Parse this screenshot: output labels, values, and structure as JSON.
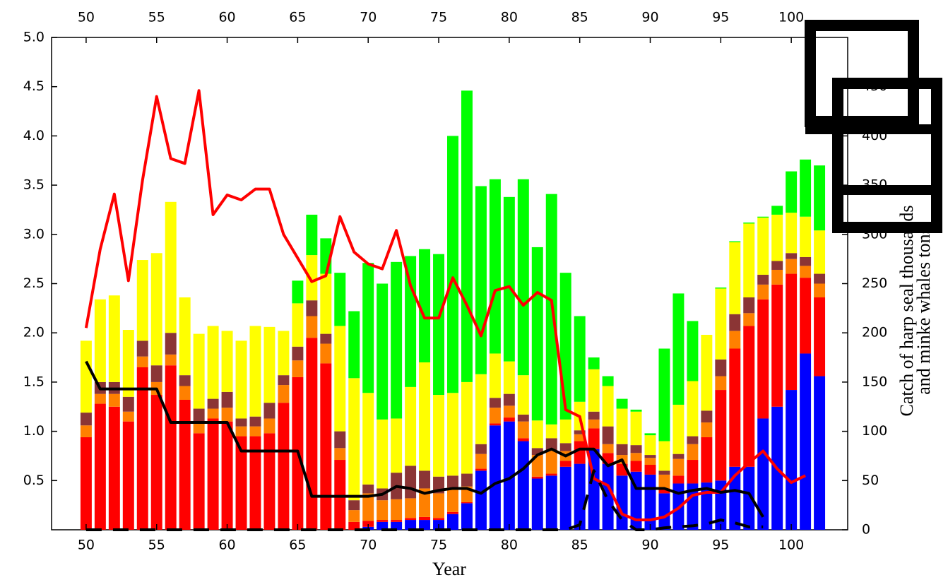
{
  "chart_data": {
    "type": "bar",
    "stacked": true,
    "xlabel": "Year",
    "y2label": [
      "Catch of harp seal thousands",
      "and minke whales tons"
    ],
    "x": [
      50,
      51,
      52,
      53,
      54,
      55,
      56,
      57,
      58,
      59,
      60,
      61,
      62,
      63,
      64,
      65,
      66,
      67,
      68,
      69,
      70,
      71,
      72,
      73,
      74,
      75,
      76,
      77,
      78,
      79,
      80,
      81,
      82,
      83,
      84,
      85,
      86,
      87,
      88,
      89,
      90,
      91,
      92,
      93,
      94,
      95,
      96,
      97,
      98,
      99,
      100,
      101,
      102
    ],
    "xlim": [
      47.55,
      104.0
    ],
    "xticks": [
      50,
      55,
      60,
      65,
      70,
      75,
      80,
      85,
      90,
      95,
      100
    ],
    "ylim": [
      0,
      5
    ],
    "yticks": [
      0.5,
      {
        "value": 1,
        "label": "1.0"
      },
      1.5,
      {
        "value": 2,
        "label": "2.0"
      },
      2.5,
      {
        "value": 3,
        "label": "3.0"
      },
      3.5,
      {
        "value": 4,
        "label": "4.0"
      },
      4.5,
      {
        "value": 5,
        "label": "5.0"
      }
    ],
    "y2lim": [
      0,
      500
    ],
    "y2ticks": [
      0,
      50,
      100,
      150,
      200,
      250,
      300,
      350,
      400,
      450
    ],
    "series": [
      {
        "color": "#0000ff",
        "values": [
          0,
          0,
          0,
          0,
          0,
          0,
          0,
          0,
          0,
          0,
          0,
          0,
          0,
          0,
          0,
          0,
          0,
          0,
          0,
          0,
          0.03,
          0.08,
          0.08,
          0.1,
          0.1,
          0.1,
          0.16,
          0.27,
          0.6,
          1.06,
          1.1,
          0.9,
          0.52,
          0.55,
          0.64,
          0.67,
          0.82,
          0.67,
          0.55,
          0.59,
          0.56,
          0.37,
          0.47,
          0.47,
          0.48,
          0.5,
          0.64,
          0.64,
          1.13,
          1.25,
          1.42,
          1.79,
          1.56
        ]
      },
      {
        "color": "#ff0000",
        "values": [
          0.94,
          1.28,
          1.25,
          1.1,
          1.65,
          1.37,
          1.67,
          1.32,
          0.98,
          1.13,
          1.1,
          0.95,
          0.95,
          0.98,
          1.29,
          1.55,
          1.95,
          1.69,
          0.71,
          0.08,
          0.06,
          0.02,
          0.02,
          0.02,
          0.03,
          0.02,
          0.02,
          0.01,
          0.02,
          0.02,
          0.04,
          0.03,
          0.02,
          0.02,
          0.06,
          0.23,
          0.21,
          0.11,
          0.12,
          0.11,
          0.1,
          0.05,
          0.08,
          0.24,
          0.46,
          0.92,
          1.2,
          1.43,
          1.21,
          1.24,
          1.18,
          0.77,
          0.8
        ]
      },
      {
        "color": "#ff8000",
        "values": [
          0.12,
          0.1,
          0.13,
          0.1,
          0.11,
          0.13,
          0.11,
          0.14,
          0.1,
          0.1,
          0.14,
          0.1,
          0.1,
          0.15,
          0.18,
          0.17,
          0.22,
          0.2,
          0.12,
          0.12,
          0.28,
          0.2,
          0.21,
          0.2,
          0.29,
          0.25,
          0.25,
          0.16,
          0.15,
          0.16,
          0.12,
          0.17,
          0.22,
          0.24,
          0.1,
          0.07,
          0.09,
          0.09,
          0.09,
          0.08,
          0.07,
          0.14,
          0.17,
          0.16,
          0.15,
          0.14,
          0.18,
          0.13,
          0.15,
          0.15,
          0.15,
          0.12,
          0.14
        ]
      },
      {
        "color": "#8b3535",
        "values": [
          0.13,
          0.12,
          0.12,
          0.15,
          0.16,
          0.17,
          0.22,
          0.11,
          0.15,
          0.1,
          0.16,
          0.08,
          0.1,
          0.16,
          0.1,
          0.14,
          0.16,
          0.1,
          0.17,
          0.1,
          0.09,
          0.12,
          0.27,
          0.33,
          0.18,
          0.17,
          0.12,
          0.13,
          0.1,
          0.1,
          0.12,
          0.07,
          0.07,
          0.12,
          0.08,
          0.04,
          0.08,
          0.18,
          0.11,
          0.08,
          0.03,
          0.04,
          0.05,
          0.08,
          0.12,
          0.17,
          0.17,
          0.16,
          0.1,
          0.09,
          0.06,
          0.09,
          0.1
        ]
      },
      {
        "color": "#ffff00",
        "values": [
          0.73,
          0.84,
          0.88,
          0.68,
          0.82,
          1.14,
          1.33,
          0.79,
          0.76,
          0.74,
          0.62,
          0.79,
          0.92,
          0.77,
          0.45,
          0.44,
          0.46,
          0.61,
          1.07,
          1.24,
          0.93,
          0.7,
          0.55,
          0.8,
          1.1,
          0.83,
          0.84,
          0.93,
          0.71,
          0.45,
          0.33,
          0.4,
          0.28,
          0.14,
          0.24,
          0.29,
          0.43,
          0.41,
          0.36,
          0.34,
          0.2,
          0.3,
          0.5,
          0.56,
          0.77,
          0.72,
          0.73,
          0.75,
          0.58,
          0.47,
          0.41,
          0.41,
          0.44
        ]
      },
      {
        "color": "#00ff00",
        "values": [
          0,
          0,
          0,
          0,
          0,
          0,
          0,
          0,
          0,
          0,
          0,
          0,
          0,
          0,
          0,
          0.23,
          0.41,
          0.36,
          0.54,
          0.68,
          1.32,
          1.38,
          1.59,
          1.33,
          1.15,
          1.43,
          2.61,
          2.96,
          1.91,
          1.77,
          1.67,
          1.99,
          1.76,
          2.34,
          1.49,
          0.87,
          0.12,
          0.1,
          0.1,
          0.02,
          0.02,
          0.94,
          1.13,
          0.61,
          0,
          0.01,
          0.01,
          0.01,
          0.01,
          0.09,
          0.42,
          0.58,
          0.66
        ]
      },
      {
        "type": "line",
        "axis": "y2",
        "color": "#ff0000",
        "values": [
          205,
          285,
          341,
          253,
          355,
          440,
          377,
          372,
          446,
          320,
          340,
          335,
          346,
          346,
          300,
          276,
          252,
          258,
          318,
          282,
          270,
          265,
          304,
          248,
          215,
          215,
          256,
          228,
          197,
          243,
          247,
          228,
          241,
          233,
          122,
          115,
          52,
          45,
          16,
          10,
          10,
          13,
          22,
          35,
          38,
          38,
          55,
          68,
          80,
          62,
          48,
          55,
          null
        ]
      },
      {
        "type": "line",
        "axis": "y2",
        "color": "#000000",
        "values": [
          171,
          143,
          143,
          143,
          143,
          143,
          109,
          109,
          109,
          109,
          109,
          80,
          80,
          80,
          80,
          80,
          34,
          34,
          34,
          34,
          34,
          36,
          44,
          42,
          37,
          40,
          42,
          42,
          37,
          47,
          52,
          62,
          76,
          82,
          75,
          82,
          82,
          65,
          71,
          42,
          42,
          42,
          37,
          40,
          42,
          38,
          40,
          37,
          13,
          null,
          null,
          null,
          null
        ]
      },
      {
        "type": "line",
        "axis": "y2",
        "color": "#000000",
        "dashed": true,
        "values": [
          0,
          0,
          0,
          0,
          0,
          0,
          0,
          0,
          0,
          0,
          0,
          0,
          0,
          0,
          0,
          0,
          0,
          0,
          0,
          0,
          0,
          0,
          0,
          0,
          0,
          0,
          0,
          0,
          0,
          0,
          0,
          0,
          0,
          0,
          0,
          5,
          60,
          30,
          10,
          0,
          0,
          2,
          3,
          4,
          6,
          10,
          7,
          3,
          3,
          null,
          null,
          null,
          null
        ]
      }
    ]
  }
}
